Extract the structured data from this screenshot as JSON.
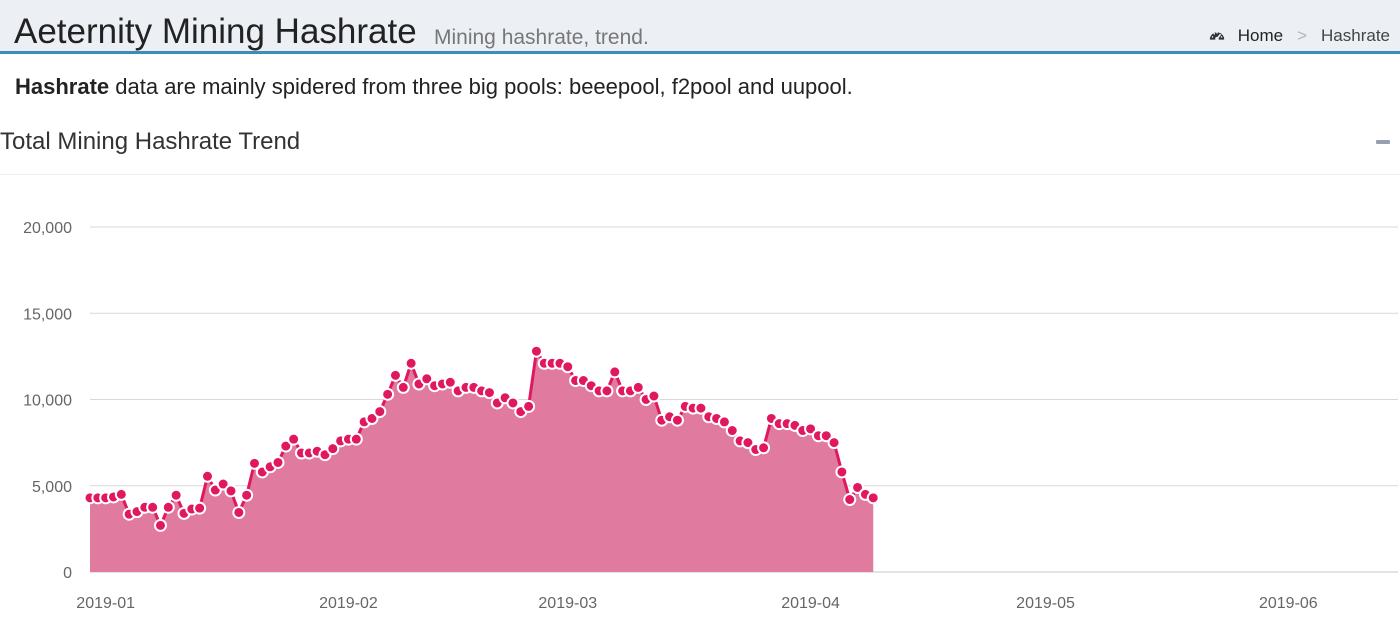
{
  "header": {
    "title": "Aeternity Mining Hashrate",
    "subtitle": "Mining hashrate, trend.",
    "breadcrumb": {
      "home": "Home",
      "separator": ">",
      "current": "Hashrate"
    }
  },
  "intro": {
    "bold": "Hashrate",
    "text": " data are mainly spidered from three big pools: beeepool, f2pool and uupool."
  },
  "box": {
    "title": "Total Mining Hashrate Trend",
    "collapse_icon": "minus-icon"
  },
  "colors": {
    "series": "#e0185f",
    "area": "#e07a9f",
    "header_accent": "#3c8dbc"
  },
  "chart_data": {
    "type": "area",
    "title": "",
    "xlabel": "",
    "ylabel": "",
    "ylim": [
      0,
      20000
    ],
    "yticks": [
      "0",
      "5,000",
      "10,000",
      "15,000",
      "20,000"
    ],
    "ytick_values": [
      0,
      5000,
      10000,
      15000,
      20000
    ],
    "xticks": [
      {
        "label": "2019-01",
        "date": "2019-01-01"
      },
      {
        "label": "2019-02",
        "date": "2019-02-01"
      },
      {
        "label": "2019-03",
        "date": "2019-03-01"
      },
      {
        "label": "2019-04",
        "date": "2019-04-01"
      },
      {
        "label": "2019-05",
        "date": "2019-05-01"
      },
      {
        "label": "2019-06",
        "date": "2019-06-01"
      }
    ],
    "xlim": [
      "2018-12-30",
      "2019-06-15"
    ],
    "grid": true,
    "series": [
      {
        "points": [
          [
            "2018-12-30",
            4300
          ],
          [
            "2018-12-31",
            4300
          ],
          [
            "2019-01-01",
            4300
          ],
          [
            "2019-01-02",
            4350
          ],
          [
            "2019-01-03",
            4500
          ],
          [
            "2019-01-04",
            3350
          ],
          [
            "2019-01-05",
            3500
          ],
          [
            "2019-01-06",
            3750
          ],
          [
            "2019-01-07",
            3750
          ],
          [
            "2019-01-08",
            2700
          ],
          [
            "2019-01-09",
            3750
          ],
          [
            "2019-01-10",
            4450
          ],
          [
            "2019-01-11",
            3400
          ],
          [
            "2019-01-12",
            3650
          ],
          [
            "2019-01-13",
            3700
          ],
          [
            "2019-01-14",
            5550
          ],
          [
            "2019-01-15",
            4750
          ],
          [
            "2019-01-16",
            5100
          ],
          [
            "2019-01-17",
            4700
          ],
          [
            "2019-01-18",
            3450
          ],
          [
            "2019-01-19",
            4450
          ],
          [
            "2019-01-20",
            6300
          ],
          [
            "2019-01-21",
            5800
          ],
          [
            "2019-01-22",
            6100
          ],
          [
            "2019-01-23",
            6350
          ],
          [
            "2019-01-24",
            7300
          ],
          [
            "2019-01-25",
            7700
          ],
          [
            "2019-01-26",
            6900
          ],
          [
            "2019-01-27",
            6900
          ],
          [
            "2019-01-28",
            7000
          ],
          [
            "2019-01-29",
            6800
          ],
          [
            "2019-01-30",
            7150
          ],
          [
            "2019-01-31",
            7600
          ],
          [
            "2019-02-01",
            7700
          ],
          [
            "2019-02-02",
            7700
          ],
          [
            "2019-02-03",
            8700
          ],
          [
            "2019-02-04",
            8900
          ],
          [
            "2019-02-05",
            9300
          ],
          [
            "2019-02-06",
            10300
          ],
          [
            "2019-02-07",
            11400
          ],
          [
            "2019-02-08",
            10700
          ],
          [
            "2019-02-09",
            12100
          ],
          [
            "2019-02-10",
            10900
          ],
          [
            "2019-02-11",
            11200
          ],
          [
            "2019-02-12",
            10800
          ],
          [
            "2019-02-13",
            10900
          ],
          [
            "2019-02-14",
            11000
          ],
          [
            "2019-02-15",
            10500
          ],
          [
            "2019-02-16",
            10700
          ],
          [
            "2019-02-17",
            10700
          ],
          [
            "2019-02-18",
            10500
          ],
          [
            "2019-02-19",
            10400
          ],
          [
            "2019-02-20",
            9800
          ],
          [
            "2019-02-21",
            10100
          ],
          [
            "2019-02-22",
            9800
          ],
          [
            "2019-02-23",
            9300
          ],
          [
            "2019-02-24",
            9600
          ],
          [
            "2019-02-25",
            12800
          ],
          [
            "2019-02-26",
            12100
          ],
          [
            "2019-02-27",
            12100
          ],
          [
            "2019-02-28",
            12100
          ],
          [
            "2019-03-01",
            11900
          ],
          [
            "2019-03-02",
            11100
          ],
          [
            "2019-03-03",
            11100
          ],
          [
            "2019-03-04",
            10800
          ],
          [
            "2019-03-05",
            10500
          ],
          [
            "2019-03-06",
            10500
          ],
          [
            "2019-03-07",
            11600
          ],
          [
            "2019-03-08",
            10500
          ],
          [
            "2019-03-09",
            10500
          ],
          [
            "2019-03-10",
            10700
          ],
          [
            "2019-03-11",
            10000
          ],
          [
            "2019-03-12",
            10200
          ],
          [
            "2019-03-13",
            8800
          ],
          [
            "2019-03-14",
            9000
          ],
          [
            "2019-03-15",
            8800
          ],
          [
            "2019-03-16",
            9600
          ],
          [
            "2019-03-17",
            9500
          ],
          [
            "2019-03-18",
            9500
          ],
          [
            "2019-03-19",
            9000
          ],
          [
            "2019-03-20",
            8900
          ],
          [
            "2019-03-21",
            8700
          ],
          [
            "2019-03-22",
            8200
          ],
          [
            "2019-03-23",
            7600
          ],
          [
            "2019-03-24",
            7500
          ],
          [
            "2019-03-25",
            7100
          ],
          [
            "2019-03-26",
            7200
          ],
          [
            "2019-03-27",
            8900
          ],
          [
            "2019-03-28",
            8600
          ],
          [
            "2019-03-29",
            8600
          ],
          [
            "2019-03-30",
            8500
          ],
          [
            "2019-03-31",
            8200
          ],
          [
            "2019-04-01",
            8300
          ],
          [
            "2019-04-02",
            7900
          ],
          [
            "2019-04-03",
            7900
          ],
          [
            "2019-04-04",
            7500
          ],
          [
            "2019-04-05",
            5800
          ],
          [
            "2019-04-06",
            4200
          ],
          [
            "2019-04-07",
            4900
          ],
          [
            "2019-04-08",
            4500
          ],
          [
            "2019-04-09",
            4300
          ]
        ]
      }
    ]
  }
}
